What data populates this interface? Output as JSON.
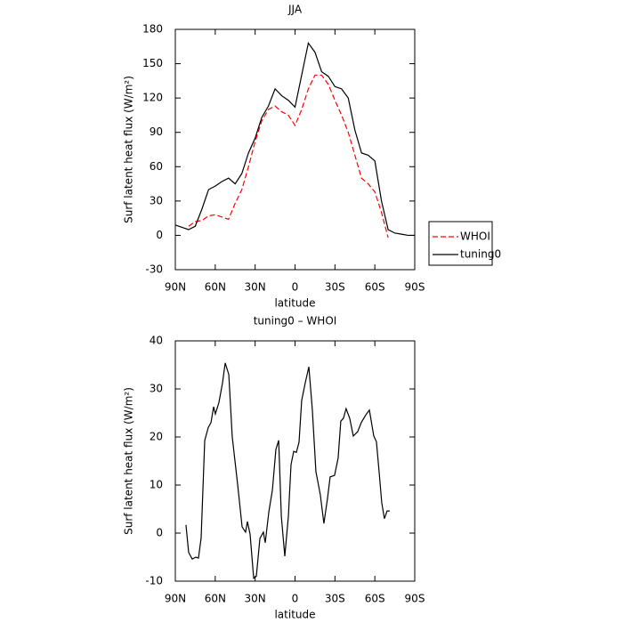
{
  "chart_data": [
    {
      "type": "line",
      "title": "JJA",
      "xlabel": "latitude",
      "ylabel": "Surf latent heat flux (W/m²)",
      "x": [
        90,
        85,
        80,
        75,
        70,
        65,
        60,
        55,
        50,
        45,
        40,
        35,
        30,
        25,
        20,
        15,
        10,
        5,
        0,
        -5,
        -10,
        -15,
        -20,
        -25,
        -30,
        -35,
        -40,
        -45,
        -50,
        -55,
        -60,
        -65,
        -70,
        -75,
        -80,
        -85,
        -90
      ],
      "series": [
        {
          "name": "WHOI",
          "color": "#ff0000",
          "linestyle": "dashed",
          "values": [
            null,
            null,
            8,
            12,
            13,
            17,
            18,
            16,
            14,
            28,
            40,
            60,
            82,
            100,
            110,
            113,
            108,
            105,
            96,
            110,
            128,
            140,
            140,
            132,
            118,
            105,
            90,
            70,
            50,
            45,
            38,
            20,
            -2,
            null,
            null,
            null,
            null
          ]
        },
        {
          "name": "tuning0",
          "color": "#000000",
          "linestyle": "solid",
          "values": [
            9,
            7,
            5,
            8,
            23,
            40,
            43,
            47,
            50,
            45,
            54,
            72,
            85,
            103,
            113,
            128,
            122,
            118,
            112,
            140,
            168,
            160,
            143,
            139,
            130,
            128,
            120,
            92,
            72,
            70,
            65,
            30,
            5,
            2,
            1,
            0,
            0
          ]
        }
      ],
      "xlim": [
        90,
        -90
      ],
      "xticks": [
        {
          "value": 90,
          "label": "90N"
        },
        {
          "value": 60,
          "label": "60N"
        },
        {
          "value": 30,
          "label": "30N"
        },
        0,
        {
          "value": -30,
          "label": "30S"
        },
        {
          "value": -60,
          "label": "60S"
        },
        {
          "value": -90,
          "label": "90S"
        }
      ],
      "ylim": [
        -30,
        180
      ],
      "yticks": [
        -30,
        0,
        30,
        60,
        90,
        120,
        150,
        180
      ],
      "legend": "right"
    },
    {
      "type": "line",
      "title": "tuning0 – WHOI",
      "xlabel": "latitude",
      "ylabel": "Surf latent heat flux (W/m²)",
      "x": [
        82,
        80,
        77.3,
        74.6,
        72.6,
        70.6,
        67.9,
        65.2,
        63.2,
        61.2,
        59.9,
        57.2,
        54.5,
        52.5,
        49.8,
        47.2,
        43.1,
        39.8,
        37.2,
        35.8,
        33.8,
        31.1,
        29.1,
        26.4,
        23.8,
        22.4,
        19.7,
        17,
        14.4,
        12.3,
        10.3,
        7.7,
        5,
        3,
        1,
        -1,
        -3,
        -5,
        -7.7,
        -10.4,
        -13,
        -15.7,
        -19,
        -21.7,
        -24.4,
        -26.4,
        -29.7,
        -32.4,
        -34.4,
        -36.4,
        -38.4,
        -41.1,
        -43.8,
        -47.1,
        -49.8,
        -53.2,
        -55.9,
        -59.2,
        -61.2,
        -63.2,
        -65.2,
        -67.2,
        -69.2,
        -71.2
      ],
      "series": [
        {
          "color": "#000000",
          "linestyle": "solid",
          "values": [
            1.7,
            -4,
            -5.4,
            -5,
            -5.2,
            -1,
            19.3,
            22,
            23,
            26.3,
            24.8,
            27.2,
            31.3,
            35.4,
            33,
            20,
            10,
            1.3,
            0.2,
            2.4,
            -0.2,
            -9.4,
            -9,
            -1.1,
            0.2,
            -2,
            4.4,
            9,
            17.4,
            19.3,
            3.5,
            -4.8,
            3.5,
            14.3,
            17,
            16.8,
            18.9,
            27.6,
            31.3,
            34.6,
            25.7,
            12.8,
            8,
            2,
            7.2,
            11.7,
            12,
            15.6,
            23.3,
            23.9,
            25.9,
            23.9,
            20.2,
            21.1,
            23,
            24.6,
            25.6,
            20.2,
            19,
            12.8,
            6.3,
            3,
            4.6,
            4.6
          ]
        }
      ],
      "xlim": [
        90,
        -90
      ],
      "xticks": [
        {
          "value": 90,
          "label": "90N"
        },
        {
          "value": 60,
          "label": "60N"
        },
        {
          "value": 30,
          "label": "30N"
        },
        0,
        {
          "value": -30,
          "label": "30S"
        },
        {
          "value": -60,
          "label": "60S"
        },
        {
          "value": -90,
          "label": "90S"
        }
      ],
      "ylim": [
        -10,
        40
      ],
      "yticks": [
        -10,
        0,
        10,
        20,
        30,
        40
      ]
    }
  ]
}
